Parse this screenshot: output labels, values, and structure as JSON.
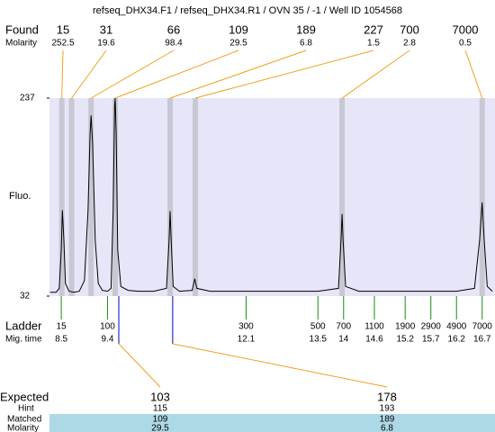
{
  "chart_data": {
    "type": "line",
    "title": "refseq_DHX34.F1 / refseq_DHX34.R1 / OVN 35 / -1 / Well ID 1054568",
    "ylabel": "Fluo.",
    "ylim": [
      32,
      237
    ],
    "yticks": [
      32,
      237
    ],
    "xlim": [
      8.27,
      16.95
    ],
    "color": "#000000",
    "background": "#e6e6f8",
    "x": [
      8.28,
      8.4,
      8.46,
      8.5,
      8.52,
      8.55,
      8.58,
      8.65,
      8.75,
      8.85,
      8.95,
      9.02,
      9.06,
      9.08,
      9.11,
      9.16,
      9.22,
      9.3,
      9.4,
      9.47,
      9.51,
      9.54,
      9.55,
      9.57,
      9.6,
      9.66,
      9.8,
      10.0,
      10.3,
      10.55,
      10.6,
      10.62,
      10.64,
      10.68,
      10.8,
      11.05,
      11.1,
      11.14,
      11.4,
      12.0,
      12.5,
      13.0,
      13.5,
      13.9,
      13.95,
      13.97,
      13.99,
      14.04,
      14.3,
      14.8,
      15.3,
      15.8,
      16.2,
      16.55,
      16.65,
      16.7,
      16.74,
      16.8,
      16.9
    ],
    "values": [
      36,
      36,
      40,
      80,
      121,
      90,
      45,
      37,
      36,
      37,
      48,
      120,
      200,
      219,
      190,
      90,
      45,
      38,
      37,
      40,
      120,
      230,
      237,
      200,
      80,
      42,
      38,
      37,
      37,
      40,
      90,
      120,
      90,
      42,
      37,
      38,
      50,
      40,
      37,
      37,
      37,
      37,
      37,
      40,
      90,
      117,
      90,
      42,
      37,
      37,
      37,
      37,
      37,
      40,
      90,
      129,
      90,
      42,
      37
    ],
    "found_label": "Found",
    "molarity_label": "Molarity",
    "found": [
      {
        "size": 15,
        "molarity": 252.5,
        "time": 8.51
      },
      {
        "size": 31,
        "molarity": 19.6,
        "time": 8.7
      },
      {
        "size": 66,
        "molarity": 98.4,
        "time": 9.08
      },
      {
        "size": 109,
        "molarity": 29.5,
        "time": 9.55
      },
      {
        "size": 189,
        "molarity": 6.8,
        "time": 10.62
      },
      {
        "size": 227,
        "molarity": 1.5,
        "time": 11.11
      },
      {
        "size": 700,
        "molarity": 2.8,
        "time": 13.97
      },
      {
        "size": 7000,
        "molarity": 0.5,
        "time": 16.7
      }
    ],
    "ladder_label": "Ladder",
    "time_label": "Mig. time",
    "ladder": [
      {
        "size": 15,
        "time": 8.5
      },
      {
        "size": 100,
        "time": 9.4
      },
      {
        "size": 300,
        "time": 12.1
      },
      {
        "size": 500,
        "time": 13.5
      },
      {
        "size": 700,
        "time": 14
      },
      {
        "size": 1100,
        "time": 14.6
      },
      {
        "size": 1900,
        "time": 15.2
      },
      {
        "size": 2900,
        "time": 15.7
      },
      {
        "size": 4900,
        "time": 16.2
      },
      {
        "size": 7000,
        "time": 16.7
      }
    ],
    "expected_label": "Expected",
    "hint_label": "Hint",
    "matched_label": "Matched",
    "expected_molarity_label": "Molarity",
    "expected": [
      {
        "expected": 103,
        "hint": 115,
        "matched": 109,
        "molarity": 29.5,
        "time": 9.62
      },
      {
        "expected": 178,
        "hint": 193,
        "matched": 189,
        "molarity": 6.8,
        "time": 10.67
      }
    ]
  }
}
